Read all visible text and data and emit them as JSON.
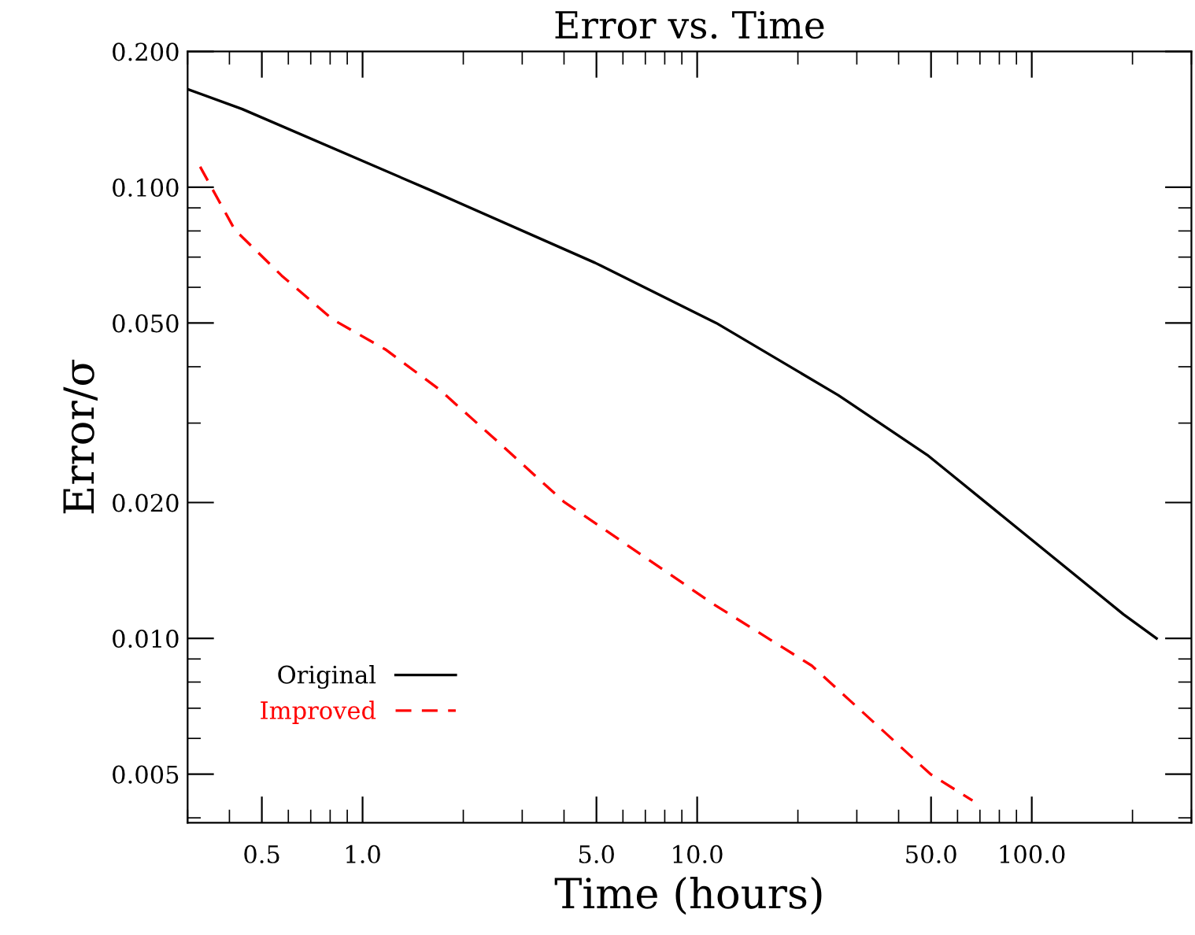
{
  "chart_data": {
    "type": "line",
    "title": "Error vs. Time",
    "xlabel": "Time (hours)",
    "ylabel": "Error/σ",
    "log": "xy",
    "xlim": [
      0.3,
      300
    ],
    "ylim": [
      0.0039,
      0.2
    ],
    "xticks": [
      {
        "value": 0.5,
        "label": "0.5"
      },
      {
        "value": 1,
        "label": "1.0"
      },
      {
        "value": 5,
        "label": "5.0"
      },
      {
        "value": 10,
        "label": "10.0"
      },
      {
        "value": 50,
        "label": "50.0"
      },
      {
        "value": 100,
        "label": "100.0"
      }
    ],
    "yticks": [
      {
        "value": 0.005,
        "label": "0.005"
      },
      {
        "value": 0.01,
        "label": "0.010"
      },
      {
        "value": 0.02,
        "label": "0.020"
      },
      {
        "value": 0.05,
        "label": "0.050"
      },
      {
        "value": 0.1,
        "label": "0.100"
      },
      {
        "value": 0.2,
        "label": "0.200"
      }
    ],
    "grid": false,
    "legend": "bottom left",
    "series": [
      {
        "name": "Original",
        "color": "#000000",
        "line_style": "solid",
        "x": [
          0.3,
          0.437,
          1.6,
          4.95,
          11.4,
          26.4,
          48.7,
          56.6,
          188,
          236
        ],
        "values": [
          0.165,
          0.149,
          0.0984,
          0.068,
          0.05,
          0.0346,
          0.0255,
          0.0233,
          0.0113,
          0.01
        ]
      },
      {
        "name": "Improved",
        "color": "#ff0000",
        "line_style": "dashed",
        "x": [
          0.327,
          0.415,
          0.573,
          0.815,
          1.17,
          1.69,
          2.52,
          3.99,
          11.2,
          22,
          49.8,
          66.5
        ],
        "values": [
          0.111,
          0.0805,
          0.0637,
          0.0509,
          0.0437,
          0.0357,
          0.0274,
          0.0201,
          0.0119,
          0.0087,
          0.005,
          0.00437
        ]
      }
    ]
  }
}
